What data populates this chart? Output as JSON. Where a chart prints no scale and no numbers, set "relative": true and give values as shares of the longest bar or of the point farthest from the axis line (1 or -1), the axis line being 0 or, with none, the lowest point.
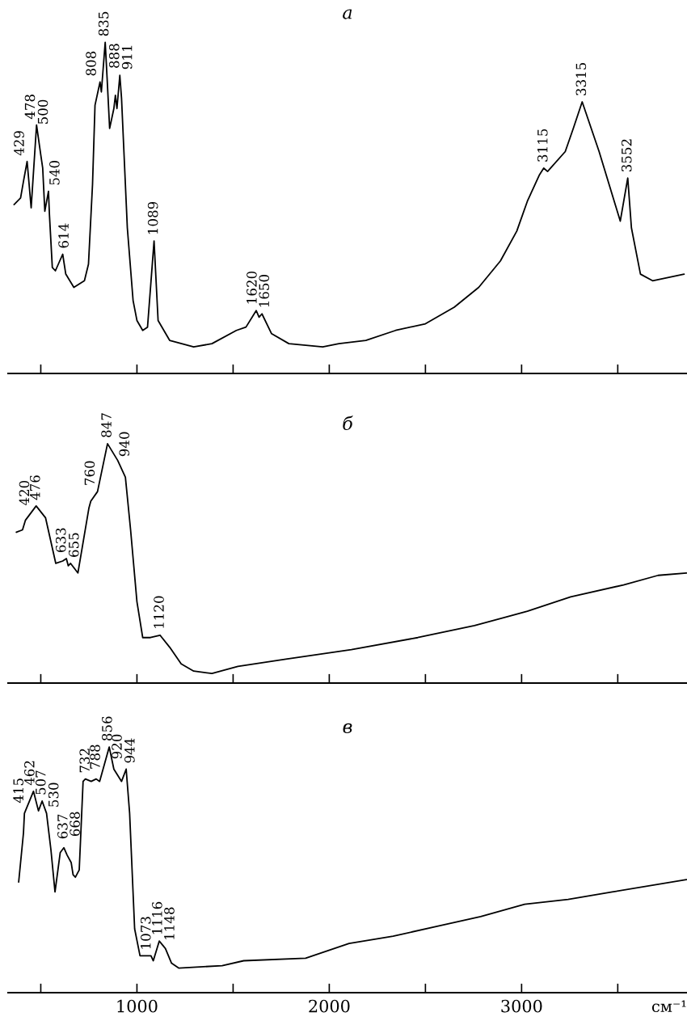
{
  "chart_data": [
    {
      "type": "line",
      "title": "а",
      "relative": true,
      "tick_labels": false,
      "xlim": [
        330,
        3860
      ],
      "xticks": [
        {
          "value": 500,
          "label": null
        },
        1000,
        {
          "value": 1500,
          "label": null
        },
        2000,
        {
          "value": 2500,
          "label": null
        },
        3000,
        {
          "value": 3500,
          "label": null
        }
      ],
      "x": [
        361,
        395,
        410,
        429,
        450,
        478,
        500,
        510,
        521,
        540,
        545,
        560,
        576,
        614,
        630,
        672,
        727,
        748,
        769,
        782,
        808,
        815,
        835,
        845,
        858,
        880,
        888,
        896,
        911,
        920,
        950,
        980,
        1000,
        1030,
        1055,
        1089,
        1110,
        1170,
        1295,
        1390,
        1517,
        1567,
        1620,
        1635,
        1650,
        1700,
        1790,
        1966,
        2050,
        2190,
        2345,
        2500,
        2650,
        2777,
        2890,
        2975,
        3030,
        3093,
        3115,
        3135,
        3227,
        3269,
        3315,
        3403,
        3513,
        3552,
        3571,
        3618,
        3681,
        3845
      ],
      "series": [
        {
          "color": "#000000",
          "values": [
            0.51,
            0.53,
            0.58,
            0.64,
            0.5,
            0.75,
            0.66,
            0.62,
            0.49,
            0.55,
            0.48,
            0.32,
            0.31,
            0.36,
            0.3,
            0.26,
            0.28,
            0.33,
            0.57,
            0.81,
            0.88,
            0.85,
            1.0,
            0.89,
            0.74,
            0.8,
            0.84,
            0.8,
            0.9,
            0.83,
            0.44,
            0.22,
            0.16,
            0.13,
            0.14,
            0.4,
            0.16,
            0.1,
            0.08,
            0.09,
            0.13,
            0.14,
            0.19,
            0.17,
            0.18,
            0.12,
            0.09,
            0.08,
            0.09,
            0.1,
            0.13,
            0.15,
            0.2,
            0.26,
            0.34,
            0.43,
            0.52,
            0.6,
            0.62,
            0.61,
            0.67,
            0.74,
            0.82,
            0.67,
            0.46,
            0.59,
            0.44,
            0.3,
            0.28,
            0.3
          ]
        }
      ],
      "annotations": [
        {
          "text": "429",
          "x": 429,
          "y": 0.64
        },
        {
          "text": "478",
          "x": 478,
          "y": 0.75
        },
        {
          "text": "500",
          "x": 500,
          "y": 0.66
        },
        {
          "text": "540",
          "x": 540,
          "y": 0.55
        },
        {
          "text": "614",
          "x": 614,
          "y": 0.36
        },
        {
          "text": "808",
          "x": 808,
          "y": 0.88
        },
        {
          "text": "835",
          "x": 835,
          "y": 1.0
        },
        {
          "text": "888",
          "x": 888,
          "y": 0.84
        },
        {
          "text": "911",
          "x": 911,
          "y": 0.9
        },
        {
          "text": "1089",
          "x": 1089,
          "y": 0.4
        },
        {
          "text": "1620",
          "x": 1620,
          "y": 0.19
        },
        {
          "text": "1650",
          "x": 1650,
          "y": 0.18
        },
        {
          "text": "3115",
          "x": 3115,
          "y": 0.62
        },
        {
          "text": "3315",
          "x": 3315,
          "y": 0.82
        },
        {
          "text": "3552",
          "x": 3552,
          "y": 0.59
        }
      ]
    },
    {
      "type": "line",
      "title": "б",
      "relative": true,
      "tick_labels": false,
      "xlim": [
        330,
        3860
      ],
      "xticks": [
        {
          "value": 500,
          "label": null
        },
        1000,
        {
          "value": 1500,
          "label": null
        },
        2000,
        {
          "value": 2500,
          "label": null
        },
        3000,
        {
          "value": 3500,
          "label": null
        }
      ],
      "x": [
        373,
        405,
        420,
        476,
        525,
        578,
        614,
        633,
        643,
        655,
        693,
        750,
        760,
        795,
        847,
        900,
        940,
        967,
        1000,
        1030,
        1070,
        1120,
        1170,
        1230,
        1295,
        1390,
        1525,
        1775,
        2115,
        2460,
        2755,
        3030,
        3255,
        3530,
        3710,
        3857
      ],
      "series": [
        {
          "color": "#000000",
          "values": [
            0.63,
            0.64,
            0.68,
            0.74,
            0.69,
            0.5,
            0.51,
            0.52,
            0.49,
            0.5,
            0.46,
            0.73,
            0.76,
            0.8,
            1.0,
            0.93,
            0.86,
            0.64,
            0.34,
            0.19,
            0.19,
            0.2,
            0.15,
            0.08,
            0.05,
            0.04,
            0.07,
            0.1,
            0.14,
            0.19,
            0.24,
            0.3,
            0.36,
            0.41,
            0.45,
            0.46
          ]
        }
      ],
      "annotations": [
        {
          "text": "420",
          "x": 420,
          "y": 0.68
        },
        {
          "text": "476",
          "x": 476,
          "y": 0.74
        },
        {
          "text": "633",
          "x": 633,
          "y": 0.52
        },
        {
          "text": "655",
          "x": 655,
          "y": 0.5
        },
        {
          "text": "760",
          "x": 760,
          "y": 0.76
        },
        {
          "text": "847",
          "x": 847,
          "y": 1.0
        },
        {
          "text": "940",
          "x": 940,
          "y": 0.86
        },
        {
          "text": "1120",
          "x": 1120,
          "y": 0.2
        }
      ]
    },
    {
      "type": "line",
      "title": "в",
      "relative": true,
      "xlabel": "см⁻¹",
      "xlim": [
        330,
        3860
      ],
      "xticks": [
        {
          "value": 500,
          "label": null
        },
        1000,
        {
          "value": 1500,
          "label": null
        },
        2000,
        {
          "value": 2500,
          "label": null
        },
        3000,
        {
          "value": 3500,
          "label": null
        }
      ],
      "x": [
        385,
        410,
        415,
        462,
        488,
        507,
        530,
        553,
        574,
        601,
        620,
        637,
        658,
        668,
        680,
        700,
        720,
        732,
        762,
        788,
        806,
        856,
        880,
        920,
        944,
        962,
        988,
        1016,
        1050,
        1073,
        1085,
        1116,
        1148,
        1180,
        1217,
        1443,
        1555,
        1877,
        2103,
        2332,
        2561,
        2787,
        3016,
        3242,
        3471,
        3857
      ],
      "series": [
        {
          "color": "#000000",
          "values": [
            0.45,
            0.65,
            0.73,
            0.82,
            0.74,
            0.78,
            0.73,
            0.58,
            0.41,
            0.57,
            0.59,
            0.56,
            0.53,
            0.48,
            0.47,
            0.5,
            0.86,
            0.87,
            0.86,
            0.87,
            0.86,
            1.0,
            0.91,
            0.86,
            0.91,
            0.73,
            0.26,
            0.15,
            0.15,
            0.15,
            0.13,
            0.21,
            0.18,
            0.12,
            0.1,
            0.11,
            0.13,
            0.14,
            0.2,
            0.23,
            0.27,
            0.31,
            0.36,
            0.38,
            0.41,
            0.46
          ]
        }
      ],
      "annotations": [
        {
          "text": "415",
          "x": 415,
          "y": 0.73
        },
        {
          "text": "462",
          "x": 462,
          "y": 0.82
        },
        {
          "text": "507",
          "x": 507,
          "y": 0.78
        },
        {
          "text": "530",
          "x": 530,
          "y": 0.73
        },
        {
          "text": "637",
          "x": 637,
          "y": 0.56
        },
        {
          "text": "668",
          "x": 668,
          "y": 0.48
        },
        {
          "text": "732",
          "x": 732,
          "y": 0.87
        },
        {
          "text": "788",
          "x": 788,
          "y": 0.87
        },
        {
          "text": "856",
          "x": 856,
          "y": 1.0
        },
        {
          "text": "920",
          "x": 920,
          "y": 0.86
        },
        {
          "text": "944",
          "x": 944,
          "y": 0.91
        },
        {
          "text": "1073",
          "x": 1073,
          "y": 0.15
        },
        {
          "text": "1116",
          "x": 1116,
          "y": 0.21
        },
        {
          "text": "1148",
          "x": 1148,
          "y": 0.18
        }
      ]
    }
  ]
}
